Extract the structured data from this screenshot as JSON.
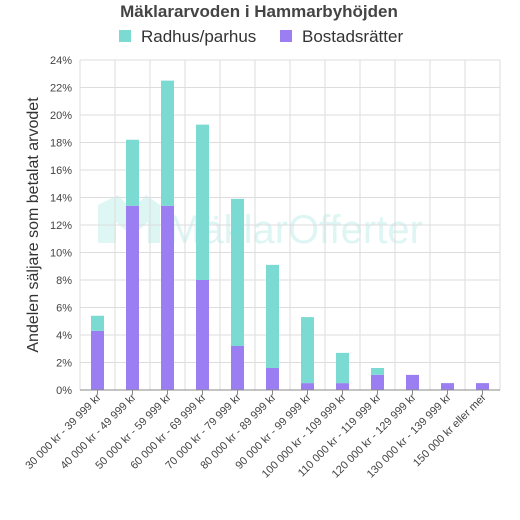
{
  "chart_data": {
    "type": "bar",
    "stacked": true,
    "title": "Mäklararvoden i Hammarbyhöjden",
    "ylabel": "Andelen säljare som betalat arvodet",
    "xlabel": "",
    "ylim": [
      0,
      24
    ],
    "y_ticks": [
      0,
      2,
      4,
      6,
      8,
      10,
      12,
      14,
      16,
      18,
      20,
      22,
      24
    ],
    "y_tick_suffix": "%",
    "grid": true,
    "legend_position": "top",
    "categories": [
      "30 000 kr - 39 999 kr",
      "40 000 kr - 49 999 kr",
      "50 000 kr - 59 999 kr",
      "60 000 kr - 69 999 kr",
      "70 000 kr - 79 999 kr",
      "80 000 kr - 89 999 kr",
      "90 000 kr - 99 999 kr",
      "100 000 kr - 109 999 kr",
      "110 000 kr - 119 999 kr",
      "120 000 kr - 129 999 kr",
      "130 000 kr - 139 999 kr",
      "150 000 kr eller mer"
    ],
    "series": [
      {
        "name": "Bostadsrätter",
        "color": "#9b7ff2",
        "values": [
          4.3,
          13.4,
          13.4,
          8.0,
          3.2,
          1.6,
          0.5,
          0.5,
          1.1,
          1.1,
          0.5,
          0.5
        ]
      },
      {
        "name": "Radhus/parhus",
        "color": "#7bdad2",
        "values": [
          1.1,
          4.8,
          9.1,
          11.3,
          10.7,
          7.5,
          4.8,
          2.2,
          0.5,
          0.0,
          0.0,
          0.0
        ]
      }
    ],
    "legend_order": [
      "Radhus/parhus",
      "Bostadsrätter"
    ],
    "watermark": "MäklarOfferter"
  }
}
